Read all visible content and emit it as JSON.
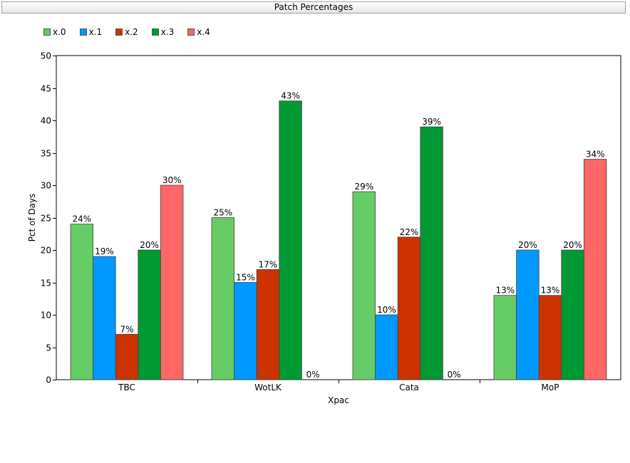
{
  "header": {
    "title": "Patch Percentages"
  },
  "chart_data": {
    "type": "bar",
    "title": "Patch Percentages",
    "xlabel": "Xpac",
    "ylabel": "Pct of Days",
    "ylim": [
      0,
      50
    ],
    "yticks": [
      0,
      5,
      10,
      15,
      20,
      25,
      30,
      35,
      40,
      45,
      50
    ],
    "categories": [
      "TBC",
      "WotLK",
      "Cata",
      "MoP"
    ],
    "series": [
      {
        "name": "x.0",
        "color": "#66cc66",
        "values": [
          24,
          25,
          29,
          13
        ]
      },
      {
        "name": "x.1",
        "color": "#0099ff",
        "values": [
          19,
          15,
          10,
          20
        ]
      },
      {
        "name": "x.2",
        "color": "#cc3300",
        "values": [
          7,
          17,
          22,
          13
        ]
      },
      {
        "name": "x.3",
        "color": "#009933",
        "values": [
          20,
          43,
          39,
          20
        ]
      },
      {
        "name": "x.4",
        "color": "#ff6666",
        "values": [
          30,
          0,
          0,
          34
        ]
      }
    ],
    "label_suffix": "%",
    "legend": "top-left",
    "grid": false
  }
}
